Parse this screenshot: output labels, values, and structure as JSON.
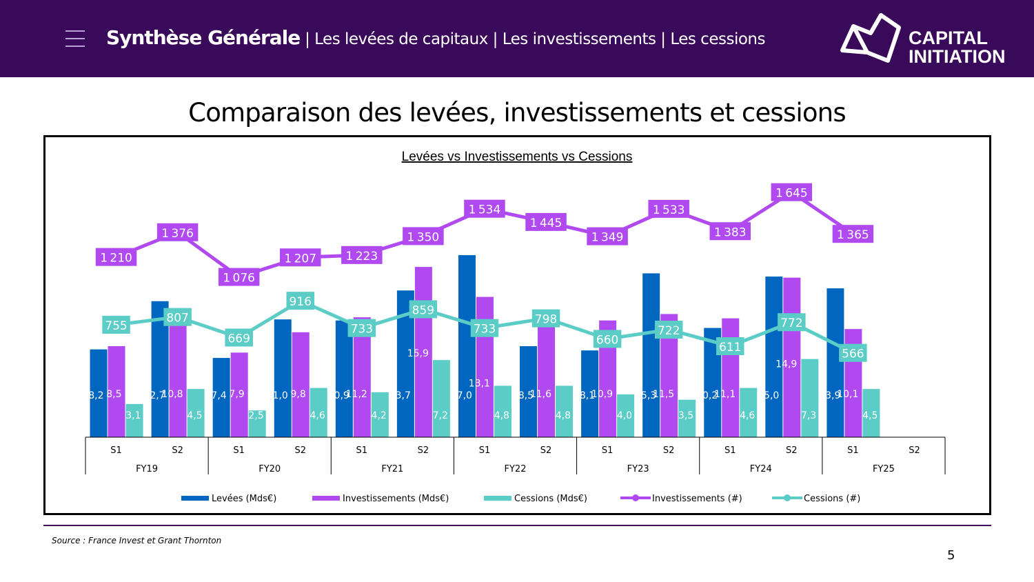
{
  "header": {
    "nav_main": "Synthèse Générale",
    "nav_items": [
      "Les levées de capitaux",
      "Les investissements",
      "Les cessions"
    ],
    "separator": "|",
    "logo_text": [
      "CAPITAL",
      "INITIATION"
    ],
    "background": "#3a0a5a"
  },
  "page": {
    "title": "Comparaison des levées, investissements et cessions",
    "source": "Source : France Invest et Grant Thornton",
    "page_number": "5"
  },
  "chart_data": {
    "type": "bar+line",
    "title": "Levées vs Investissements vs Cessions",
    "years": [
      "FY19",
      "FY20",
      "FY21",
      "FY22",
      "FY23",
      "FY24",
      "FY25"
    ],
    "categories": [
      "S1",
      "S2",
      "S1",
      "S2",
      "S1",
      "S2",
      "S1",
      "S2",
      "S1",
      "S2",
      "S1",
      "S2",
      "S1",
      "S2"
    ],
    "legend_position": "bottom",
    "grid": false,
    "series": [
      {
        "name": "Levées (Mds€)",
        "kind": "bar",
        "axis": "primary",
        "color": "#0066bf",
        "values": [
          8.2,
          12.7,
          7.4,
          11.0,
          10.9,
          13.7,
          17.0,
          8.5,
          8.1,
          15.3,
          10.2,
          15.0,
          13.9,
          null
        ]
      },
      {
        "name": "Investissements (Mds€)",
        "kind": "bar",
        "axis": "primary",
        "color": "#b04af0",
        "values": [
          8.5,
          10.8,
          7.9,
          9.8,
          11.2,
          15.9,
          13.1,
          11.6,
          10.9,
          11.5,
          11.1,
          14.9,
          10.1,
          null
        ]
      },
      {
        "name": "Cessions (Mds€)",
        "kind": "bar",
        "axis": "primary",
        "color": "#5ccdc6",
        "values": [
          3.1,
          4.5,
          2.5,
          4.6,
          4.2,
          7.2,
          4.8,
          4.8,
          4.0,
          3.5,
          4.6,
          7.3,
          4.5,
          null
        ]
      },
      {
        "name": "Investissements (#)",
        "kind": "line",
        "axis": "secondary",
        "color": "#b04af0",
        "values": [
          1210,
          1376,
          1076,
          1207,
          1223,
          1350,
          1534,
          1445,
          1349,
          1533,
          1383,
          1645,
          1365,
          null
        ]
      },
      {
        "name": "Cessions (#)",
        "kind": "line",
        "axis": "secondary",
        "color": "#5ccdc6",
        "values": [
          755,
          807,
          669,
          916,
          733,
          859,
          733,
          798,
          660,
          722,
          611,
          772,
          566,
          null
        ]
      }
    ]
  }
}
